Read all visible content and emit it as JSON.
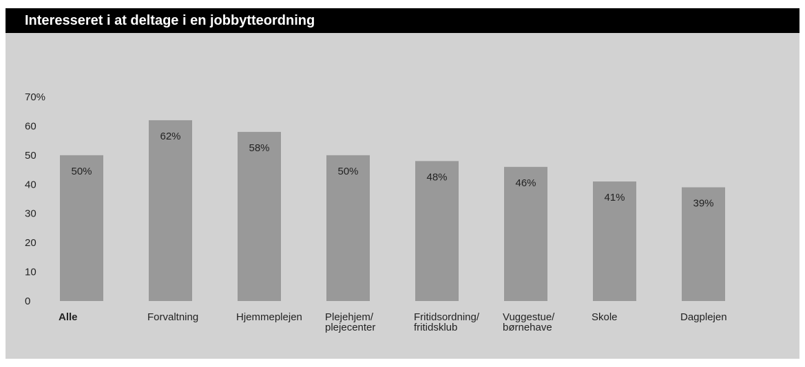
{
  "chart_data": {
    "type": "bar",
    "title": "Interesseret i at deltage i en jobbytteordning",
    "categories": [
      [
        "Alle"
      ],
      [
        "Forvaltning"
      ],
      [
        "Hjemmeplejen"
      ],
      [
        "Plejehjem/",
        "plejecenter"
      ],
      [
        "Fritidsordning/",
        "fritidsklub"
      ],
      [
        "Vuggestue/",
        "børnehave"
      ],
      [
        "Skole"
      ],
      [
        "Dagplejen"
      ]
    ],
    "values": [
      50,
      62,
      58,
      50,
      48,
      46,
      41,
      39
    ],
    "data_labels": [
      "50%",
      "62%",
      "58%",
      "50%",
      "48%",
      "46%",
      "41%",
      "39%"
    ],
    "y_ticks": [
      "0",
      "10",
      "20",
      "30",
      "40",
      "50",
      "60",
      "70%"
    ],
    "ylim": [
      0,
      70
    ],
    "grid": false,
    "bold_categories": [
      0
    ],
    "colors": {
      "bar": "#999999",
      "panel": "#d2d2d2",
      "title_bg": "#000000",
      "title_fg": "#ffffff"
    }
  }
}
